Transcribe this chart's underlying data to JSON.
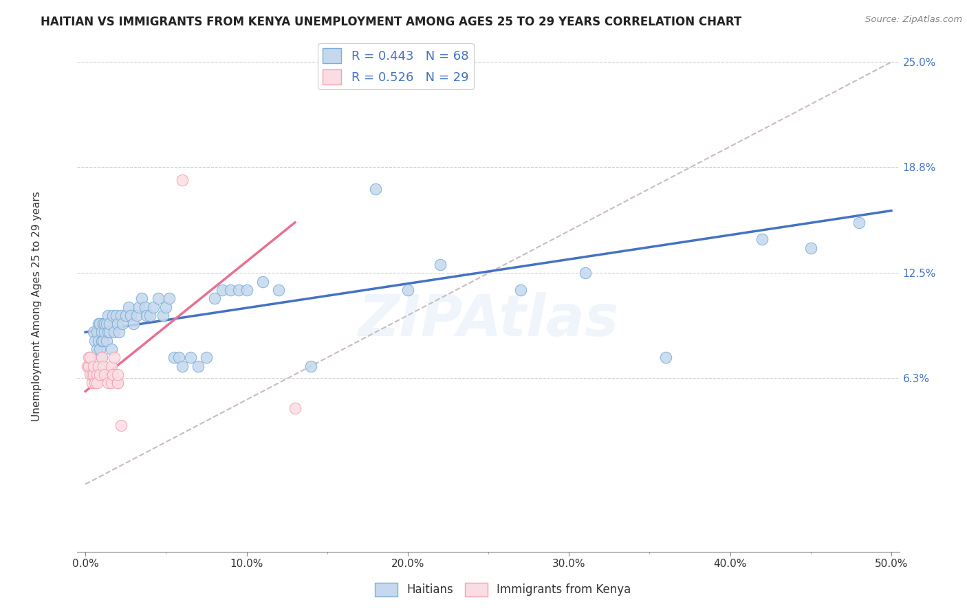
{
  "title": "HAITIAN VS IMMIGRANTS FROM KENYA UNEMPLOYMENT AMONG AGES 25 TO 29 YEARS CORRELATION CHART",
  "source": "Source: ZipAtlas.com",
  "ylabel": "Unemployment Among Ages 25 to 29 years",
  "xlim": [
    -0.005,
    0.505
  ],
  "ylim": [
    -0.04,
    0.265
  ],
  "xtick_values": [
    0.0,
    0.1,
    0.2,
    0.3,
    0.4,
    0.5
  ],
  "xticklabels": [
    "0.0%",
    "10.0%",
    "20.0%",
    "30.0%",
    "40.0%",
    "50.0%"
  ],
  "xtick_values_minor": [
    0.05,
    0.15,
    0.25,
    0.35,
    0.45
  ],
  "ytick_values": [
    0.063,
    0.125,
    0.188,
    0.25
  ],
  "ytick_labels": [
    "6.3%",
    "12.5%",
    "18.8%",
    "25.0%"
  ],
  "grid_color": "#cccccc",
  "background_color": "#ffffff",
  "watermark": "ZIPAtlas",
  "legend_r1": "R = 0.443",
  "legend_n1": "N = 68",
  "legend_r2": "R = 0.526",
  "legend_n2": "N = 29",
  "blue_color": "#7BAFD4",
  "pink_color": "#F4A0B0",
  "blue_fill": "#C5D8EE",
  "pink_fill": "#FADDE4",
  "blue_line_color": "#4472C4",
  "pink_line_color": "#E87090",
  "dashed_line_color": "#CCBBBB",
  "legend_text_color": "#4472C4",
  "haitians_x": [
    0.005,
    0.006,
    0.007,
    0.007,
    0.008,
    0.008,
    0.009,
    0.009,
    0.01,
    0.01,
    0.01,
    0.011,
    0.011,
    0.012,
    0.012,
    0.013,
    0.013,
    0.014,
    0.014,
    0.015,
    0.015,
    0.016,
    0.017,
    0.018,
    0.019,
    0.02,
    0.021,
    0.022,
    0.023,
    0.025,
    0.027,
    0.028,
    0.03,
    0.032,
    0.033,
    0.035,
    0.037,
    0.038,
    0.04,
    0.042,
    0.045,
    0.048,
    0.05,
    0.052,
    0.055,
    0.058,
    0.06,
    0.065,
    0.07,
    0.075,
    0.08,
    0.085,
    0.09,
    0.095,
    0.1,
    0.11,
    0.12,
    0.14,
    0.16,
    0.18,
    0.2,
    0.22,
    0.27,
    0.31,
    0.36,
    0.42,
    0.45,
    0.48
  ],
  "haitians_y": [
    0.09,
    0.085,
    0.09,
    0.08,
    0.085,
    0.095,
    0.095,
    0.08,
    0.075,
    0.09,
    0.085,
    0.095,
    0.085,
    0.09,
    0.095,
    0.085,
    0.095,
    0.09,
    0.1,
    0.09,
    0.095,
    0.08,
    0.1,
    0.09,
    0.1,
    0.095,
    0.09,
    0.1,
    0.095,
    0.1,
    0.105,
    0.1,
    0.095,
    0.1,
    0.105,
    0.11,
    0.105,
    0.1,
    0.1,
    0.105,
    0.11,
    0.1,
    0.105,
    0.11,
    0.075,
    0.075,
    0.07,
    0.075,
    0.07,
    0.075,
    0.11,
    0.115,
    0.115,
    0.115,
    0.115,
    0.12,
    0.115,
    0.07,
    0.24,
    0.175,
    0.115,
    0.13,
    0.115,
    0.125,
    0.075,
    0.145,
    0.14,
    0.155
  ],
  "kenya_x": [
    0.001,
    0.002,
    0.002,
    0.003,
    0.003,
    0.004,
    0.004,
    0.005,
    0.005,
    0.006,
    0.006,
    0.007,
    0.007,
    0.008,
    0.009,
    0.01,
    0.011,
    0.012,
    0.014,
    0.016,
    0.016,
    0.017,
    0.018,
    0.02,
    0.02,
    0.02,
    0.022,
    0.06,
    0.13
  ],
  "kenya_y": [
    0.07,
    0.07,
    0.075,
    0.065,
    0.075,
    0.06,
    0.065,
    0.065,
    0.07,
    0.06,
    0.06,
    0.065,
    0.06,
    0.07,
    0.065,
    0.075,
    0.07,
    0.065,
    0.06,
    0.07,
    0.06,
    0.065,
    0.075,
    0.06,
    0.06,
    0.065,
    0.035,
    0.18,
    0.045
  ],
  "blue_regline_x": [
    0.0,
    0.5
  ],
  "blue_regline_y": [
    0.09,
    0.162
  ],
  "pink_regline_x": [
    0.0,
    0.13
  ],
  "pink_regline_y": [
    0.055,
    0.155
  ],
  "ref_line_x": [
    0.0,
    0.5
  ],
  "ref_line_y": [
    0.0,
    0.25
  ]
}
